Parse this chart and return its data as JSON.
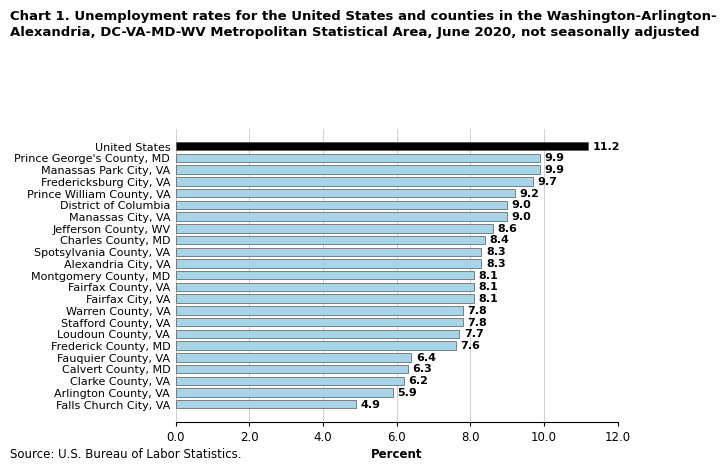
{
  "title_line1": "Chart 1. Unemployment rates for the United States and counties in the Washington-Arlington-",
  "title_line2": "Alexandria, DC-VA-MD-WV Metropolitan Statistical Area, June 2020, not seasonally adjusted",
  "categories": [
    "United States",
    "Prince George's County, MD",
    "Manassas Park City, VA",
    "Fredericksburg City, VA",
    "Prince William County, VA",
    "District of Columbia",
    "Manassas City, VA",
    "Jefferson County, WV",
    "Charles County, MD",
    "Spotsylvania County, VA",
    "Alexandria City, VA",
    "Montgomery County, MD",
    "Fairfax County, VA",
    "Fairfax City, VA",
    "Warren County, VA",
    "Stafford County, VA",
    "Loudoun County, VA",
    "Frederick County, MD",
    "Fauquier County, VA",
    "Calvert County, MD",
    "Clarke County, VA",
    "Arlington County, VA",
    "Falls Church City, VA"
  ],
  "values": [
    11.2,
    9.9,
    9.9,
    9.7,
    9.2,
    9.0,
    9.0,
    8.6,
    8.4,
    8.3,
    8.3,
    8.1,
    8.1,
    8.1,
    7.8,
    7.8,
    7.7,
    7.6,
    6.4,
    6.3,
    6.2,
    5.9,
    4.9
  ],
  "bar_color_us": "#000000",
  "bar_color_other": "#a8d4e8",
  "bar_edgecolor": "#555555",
  "xlabel": "Percent",
  "xlim": [
    0,
    12.0
  ],
  "xticks": [
    0.0,
    2.0,
    4.0,
    6.0,
    8.0,
    10.0,
    12.0
  ],
  "xtick_labels": [
    "0.0",
    "2.0",
    "4.0",
    "6.0",
    "8.0",
    "10.0",
    "12.0"
  ],
  "source": "Source: U.S. Bureau of Labor Statistics.",
  "background_color": "#ffffff",
  "title_fontsize": 9.5,
  "label_fontsize": 8.0,
  "tick_fontsize": 8.5,
  "value_fontsize": 8.0,
  "source_fontsize": 8.5,
  "bar_height": 0.72
}
